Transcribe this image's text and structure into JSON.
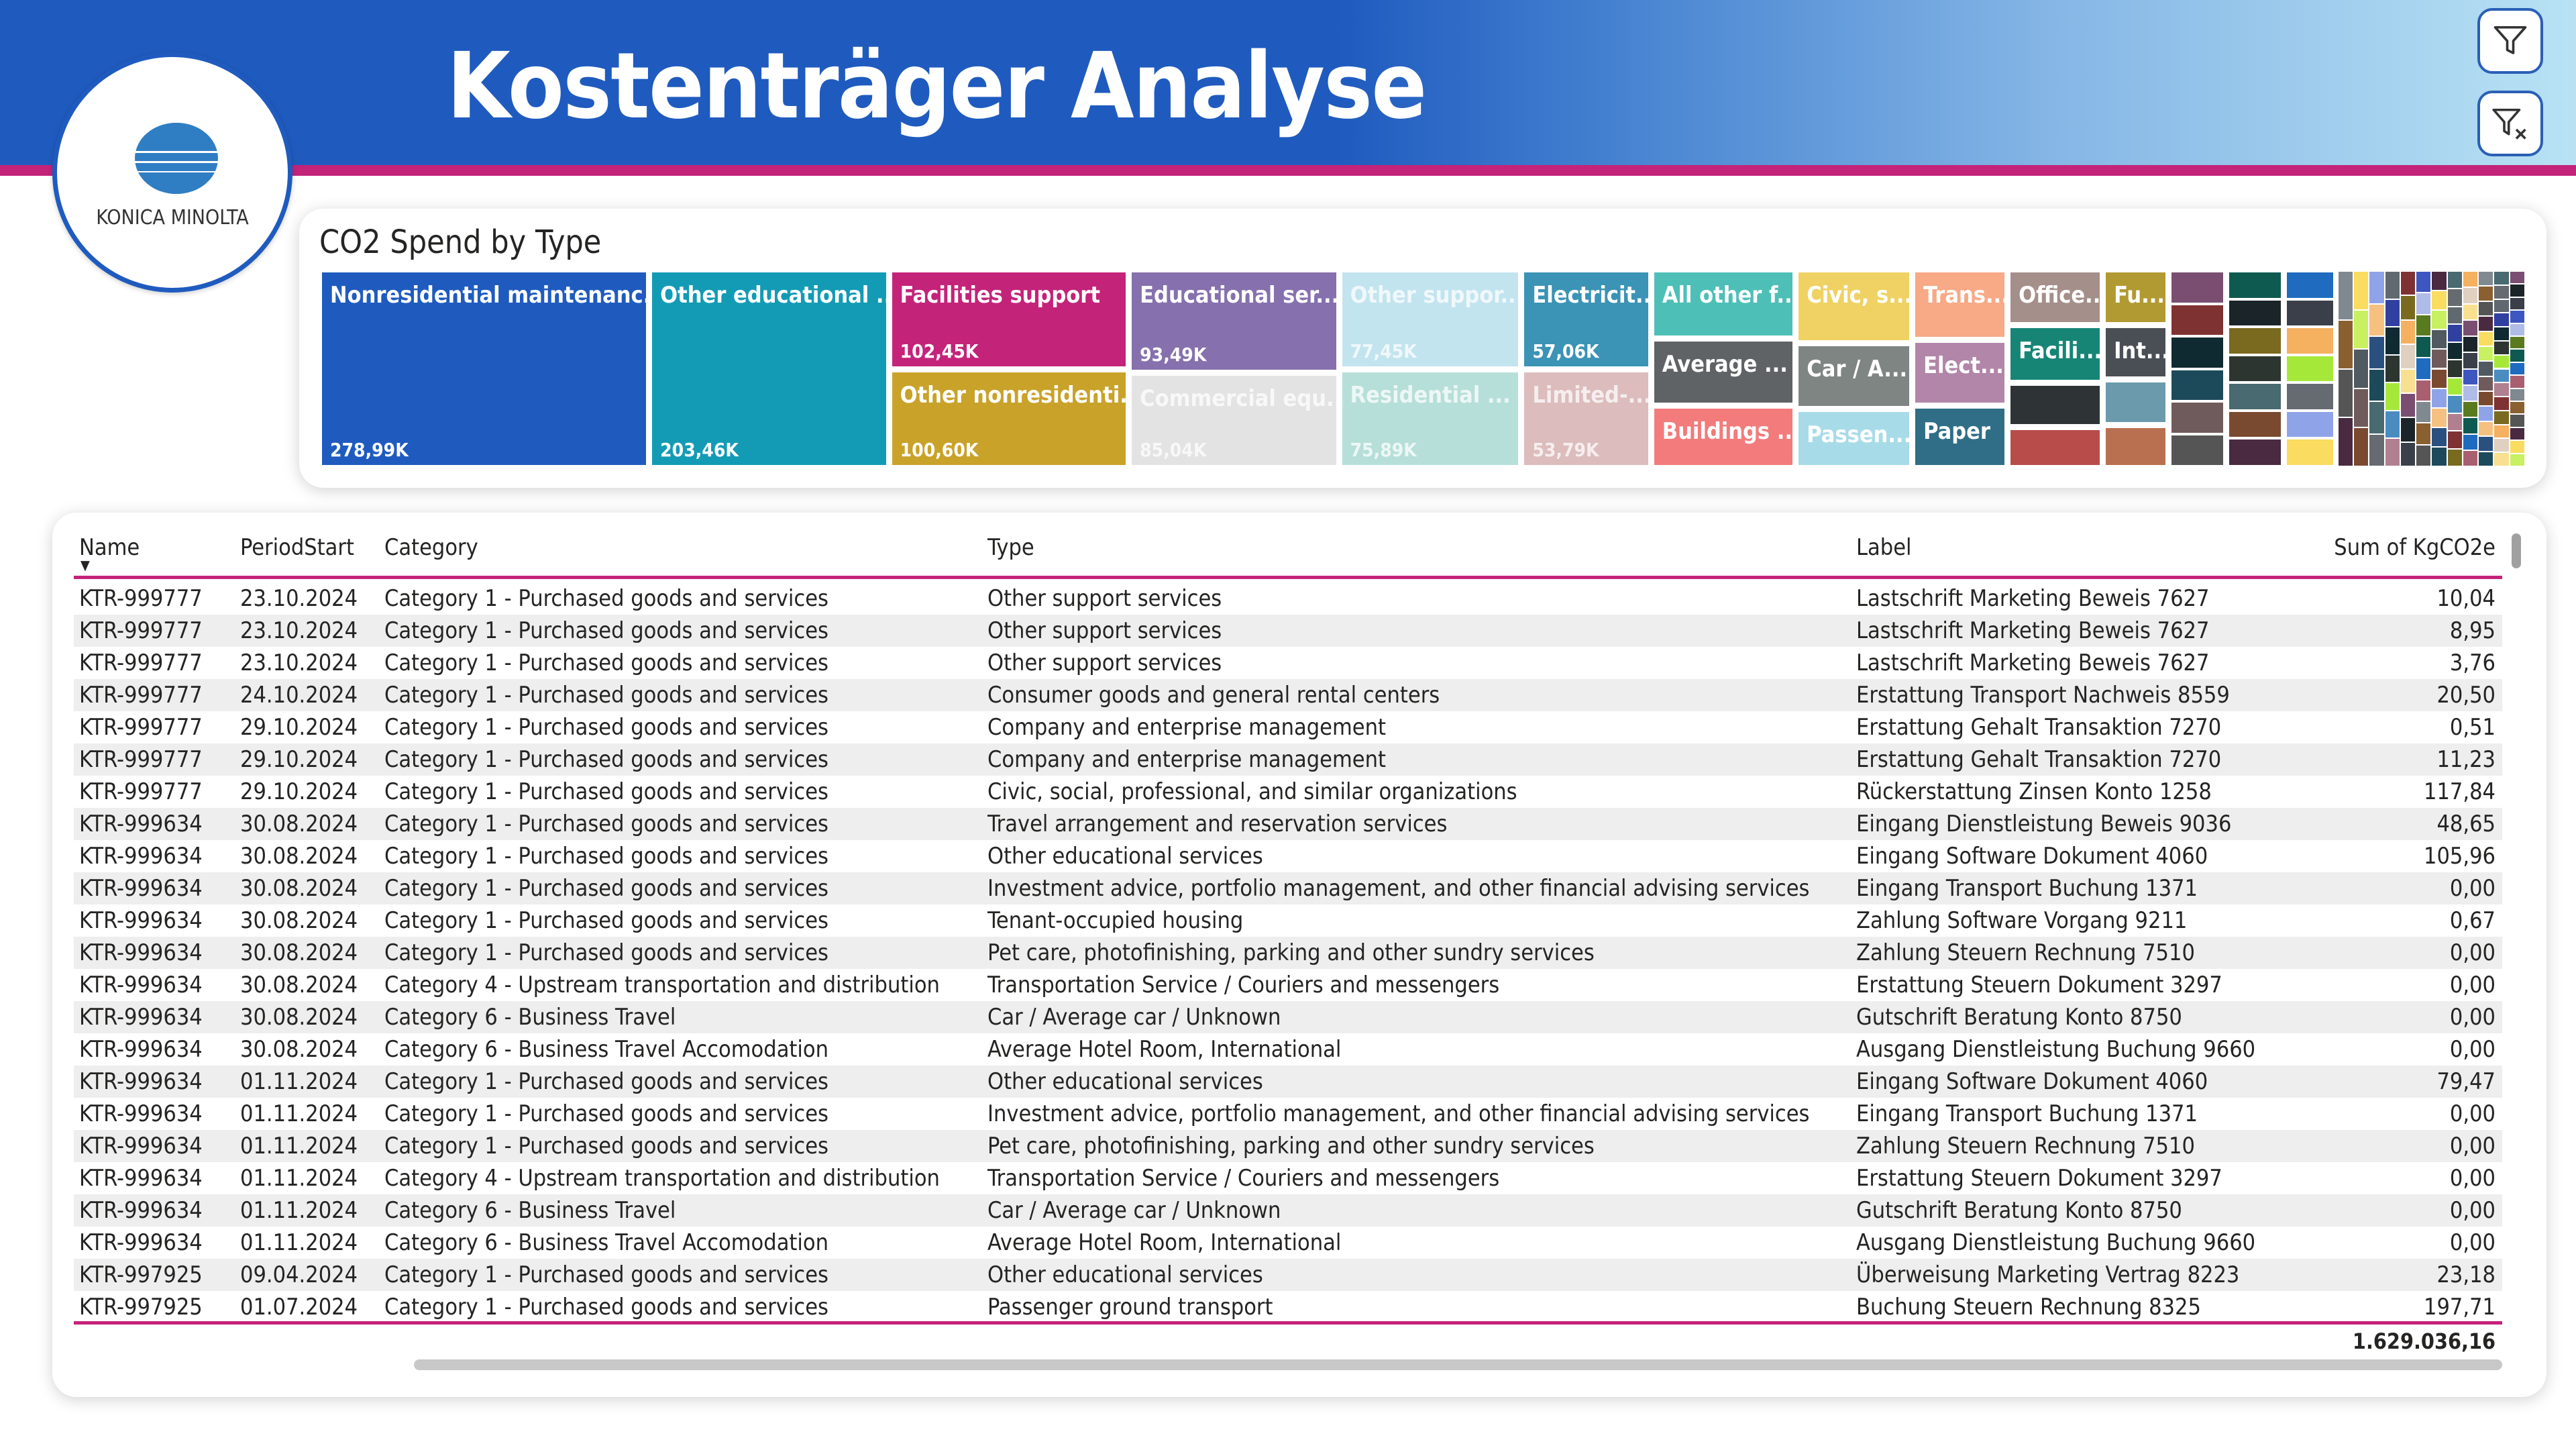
{
  "header": {
    "title": "Kostenträger Analyse",
    "logo_text": "KONICA MINOLTA"
  },
  "buttons": {
    "filter_icon": "filter-icon",
    "clear_filter_icon": "filter-clear-icon"
  },
  "colors": {
    "brand_blue": "#1f5bbf",
    "accent_magenta": "#c4237a"
  },
  "chart_data": {
    "type": "treemap",
    "title": "CO2 Spend by Type",
    "tiles": [
      {
        "label": "Nonresidential maintenanc...",
        "value": "278,99K",
        "color": "#1f5bbf"
      },
      {
        "label": "Other educational ...",
        "value": "203,46K",
        "color": "#139bb5"
      },
      {
        "label": "Facilities support",
        "value": "102,45K",
        "color": "#c4237a"
      },
      {
        "label": "Other nonresidenti...",
        "value": "100,60K",
        "color": "#c9a22a"
      },
      {
        "label": "Educational ser...",
        "value": "93,49K",
        "color": "#8670ad"
      },
      {
        "label": "Commercial equ...",
        "value": "85,04K",
        "color": "#e3e3e3"
      },
      {
        "label": "Other suppor...",
        "value": "77,45K",
        "color": "#c2e4ef"
      },
      {
        "label": "Residential ...",
        "value": "75,89K",
        "color": "#b7dfd9"
      },
      {
        "label": "Electricit...",
        "value": "57,06K",
        "color": "#3b93b5"
      },
      {
        "label": "Limited-...",
        "value": "53,79K",
        "color": "#dcbcbc"
      },
      {
        "label": "All other f...",
        "color": "#4dbfb7"
      },
      {
        "label": "Average ...",
        "color": "#5f6366"
      },
      {
        "label": "Buildings ...",
        "color": "#f37b7b"
      },
      {
        "label": "Civic, s...",
        "color": "#efd263"
      },
      {
        "label": "Car / A...",
        "color": "#7f8583"
      },
      {
        "label": "Passen...",
        "color": "#a8dbe8"
      },
      {
        "label": "Trans...",
        "color": "#f8a985"
      },
      {
        "label": "Elect...",
        "color": "#b186a8"
      },
      {
        "label": "Paper",
        "color": "#2f6e86"
      },
      {
        "label": "Office...",
        "color": "#a58f8b"
      },
      {
        "label": "Facili...",
        "color": "#168576"
      },
      {
        "label": "",
        "color": "#2e3436"
      },
      {
        "label": "",
        "color": "#b84c4a"
      },
      {
        "label": "Fu...",
        "color": "#b29a32"
      },
      {
        "label": "Int...",
        "color": "#4a4f55"
      },
      {
        "label": "",
        "color": "#6b9aad"
      },
      {
        "label": "",
        "color": "#b87050"
      }
    ]
  },
  "table": {
    "columns": [
      "Name",
      "PeriodStart",
      "Category",
      "Type",
      "Label",
      "Sum of KgCO2e"
    ],
    "rows": [
      [
        "KTR-999777",
        "23.10.2024",
        "Category 1 - Purchased goods and services",
        "Other support services",
        "Lastschrift Marketing Beweis 7627",
        "10,04"
      ],
      [
        "KTR-999777",
        "23.10.2024",
        "Category 1 - Purchased goods and services",
        "Other support services",
        "Lastschrift Marketing Beweis 7627",
        "8,95"
      ],
      [
        "KTR-999777",
        "23.10.2024",
        "Category 1 - Purchased goods and services",
        "Other support services",
        "Lastschrift Marketing Beweis 7627",
        "3,76"
      ],
      [
        "KTR-999777",
        "24.10.2024",
        "Category 1 - Purchased goods and services",
        "Consumer goods and general rental centers",
        "Erstattung Transport Nachweis 8559",
        "20,50"
      ],
      [
        "KTR-999777",
        "29.10.2024",
        "Category 1 - Purchased goods and services",
        "Company and enterprise management",
        "Erstattung Gehalt Transaktion 7270",
        "0,51"
      ],
      [
        "KTR-999777",
        "29.10.2024",
        "Category 1 - Purchased goods and services",
        "Company and enterprise management",
        "Erstattung Gehalt Transaktion 7270",
        "11,23"
      ],
      [
        "KTR-999777",
        "29.10.2024",
        "Category 1 - Purchased goods and services",
        "Civic, social, professional, and similar organizations",
        "Rückerstattung Zinsen Konto 1258",
        "117,84"
      ],
      [
        "KTR-999634",
        "30.08.2024",
        "Category 1 - Purchased goods and services",
        "Travel arrangement and reservation services",
        "Eingang Dienstleistung Beweis 9036",
        "48,65"
      ],
      [
        "KTR-999634",
        "30.08.2024",
        "Category 1 - Purchased goods and services",
        "Other educational services",
        "Eingang Software Dokument 4060",
        "105,96"
      ],
      [
        "KTR-999634",
        "30.08.2024",
        "Category 1 - Purchased goods and services",
        "Investment advice, portfolio management, and other financial advising services",
        "Eingang Transport Buchung 1371",
        "0,00"
      ],
      [
        "KTR-999634",
        "30.08.2024",
        "Category 1 - Purchased goods and services",
        "Tenant-occupied housing",
        "Zahlung Software Vorgang 9211",
        "0,67"
      ],
      [
        "KTR-999634",
        "30.08.2024",
        "Category 1 - Purchased goods and services",
        "Pet care, photofinishing, parking and other sundry services",
        "Zahlung Steuern Rechnung 7510",
        "0,00"
      ],
      [
        "KTR-999634",
        "30.08.2024",
        "Category 4 - Upstream transportation and distribution",
        "Transportation Service / Couriers and messengers",
        "Erstattung Steuern Dokument 3297",
        "0,00"
      ],
      [
        "KTR-999634",
        "30.08.2024",
        "Category 6 - Business Travel",
        "Car / Average car / Unknown",
        "Gutschrift Beratung Konto 8750",
        "0,00"
      ],
      [
        "KTR-999634",
        "30.08.2024",
        "Category 6 - Business Travel Accomodation",
        "Average Hotel Room, International",
        "Ausgang Dienstleistung Buchung 9660",
        "0,00"
      ],
      [
        "KTR-999634",
        "01.11.2024",
        "Category 1 - Purchased goods and services",
        "Other educational services",
        "Eingang Software Dokument 4060",
        "79,47"
      ],
      [
        "KTR-999634",
        "01.11.2024",
        "Category 1 - Purchased goods and services",
        "Investment advice, portfolio management, and other financial advising services",
        "Eingang Transport Buchung 1371",
        "0,00"
      ],
      [
        "KTR-999634",
        "01.11.2024",
        "Category 1 - Purchased goods and services",
        "Pet care, photofinishing, parking and other sundry services",
        "Zahlung Steuern Rechnung 7510",
        "0,00"
      ],
      [
        "KTR-999634",
        "01.11.2024",
        "Category 4 - Upstream transportation and distribution",
        "Transportation Service / Couriers and messengers",
        "Erstattung Steuern Dokument 3297",
        "0,00"
      ],
      [
        "KTR-999634",
        "01.11.2024",
        "Category 6 - Business Travel",
        "Car / Average car / Unknown",
        "Gutschrift Beratung Konto 8750",
        "0,00"
      ],
      [
        "KTR-999634",
        "01.11.2024",
        "Category 6 - Business Travel Accomodation",
        "Average Hotel Room, International",
        "Ausgang Dienstleistung Buchung 9660",
        "0,00"
      ],
      [
        "KTR-997925",
        "09.04.2024",
        "Category 1 - Purchased goods and services",
        "Other educational services",
        "Überweisung Marketing Vertrag 8223",
        "23,18"
      ],
      [
        "KTR-997925",
        "01.07.2024",
        "Category 1 - Purchased goods and services",
        "Passenger ground transport",
        "Buchung Steuern Rechnung 8325",
        "197,71"
      ]
    ],
    "total": "1.629.036,16"
  }
}
